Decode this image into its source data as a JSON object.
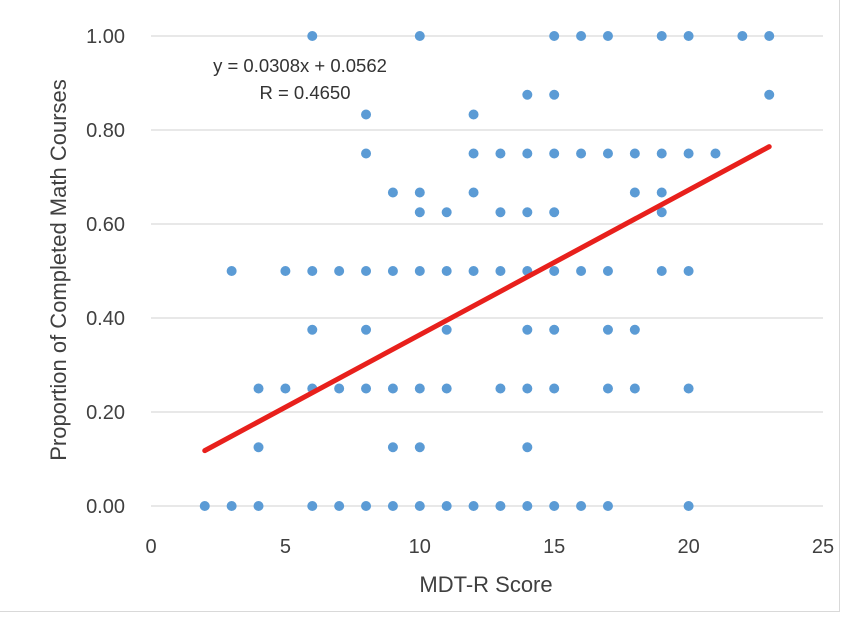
{
  "chart_data": {
    "type": "scatter",
    "title": "",
    "xlabel": "MDT-R Score",
    "ylabel": "Proportion of Completed Math Courses",
    "xlim": [
      0,
      25
    ],
    "ylim": [
      0,
      1
    ],
    "x_ticks": [
      "0",
      "5",
      "10",
      "15",
      "20",
      "25"
    ],
    "y_ticks": [
      "0.00",
      "0.20",
      "0.40",
      "0.60",
      "0.80",
      "1.00"
    ],
    "grid": "horizontal",
    "colors": {
      "points": "#5b9bd5",
      "trendline": "#e8201c",
      "grid": "#d9d9d9",
      "text": "#404040"
    },
    "annotations": {
      "equation": "y = 0.0308x + 0.0562",
      "r_value": "R = 0.4650"
    },
    "trendline": {
      "slope": 0.0308,
      "intercept": 0.0562,
      "x_range": [
        2,
        23
      ]
    },
    "points": [
      {
        "x": 6,
        "y": 1.0
      },
      {
        "x": 10,
        "y": 1.0
      },
      {
        "x": 15,
        "y": 1.0
      },
      {
        "x": 16,
        "y": 1.0
      },
      {
        "x": 17,
        "y": 1.0
      },
      {
        "x": 19,
        "y": 1.0
      },
      {
        "x": 20,
        "y": 1.0
      },
      {
        "x": 22,
        "y": 1.0
      },
      {
        "x": 23,
        "y": 1.0
      },
      {
        "x": 14,
        "y": 0.875
      },
      {
        "x": 15,
        "y": 0.875
      },
      {
        "x": 23,
        "y": 0.875
      },
      {
        "x": 8,
        "y": 0.833
      },
      {
        "x": 12,
        "y": 0.833
      },
      {
        "x": 8,
        "y": 0.75
      },
      {
        "x": 12,
        "y": 0.75
      },
      {
        "x": 13,
        "y": 0.75
      },
      {
        "x": 14,
        "y": 0.75
      },
      {
        "x": 15,
        "y": 0.75
      },
      {
        "x": 16,
        "y": 0.75
      },
      {
        "x": 17,
        "y": 0.75
      },
      {
        "x": 18,
        "y": 0.75
      },
      {
        "x": 19,
        "y": 0.75
      },
      {
        "x": 20,
        "y": 0.75
      },
      {
        "x": 21,
        "y": 0.75
      },
      {
        "x": 9,
        "y": 0.667
      },
      {
        "x": 10,
        "y": 0.667
      },
      {
        "x": 12,
        "y": 0.667
      },
      {
        "x": 18,
        "y": 0.667
      },
      {
        "x": 19,
        "y": 0.667
      },
      {
        "x": 10,
        "y": 0.625
      },
      {
        "x": 11,
        "y": 0.625
      },
      {
        "x": 13,
        "y": 0.625
      },
      {
        "x": 14,
        "y": 0.625
      },
      {
        "x": 15,
        "y": 0.625
      },
      {
        "x": 19,
        "y": 0.625
      },
      {
        "x": 3,
        "y": 0.5
      },
      {
        "x": 5,
        "y": 0.5
      },
      {
        "x": 6,
        "y": 0.5
      },
      {
        "x": 7,
        "y": 0.5
      },
      {
        "x": 8,
        "y": 0.5
      },
      {
        "x": 9,
        "y": 0.5
      },
      {
        "x": 10,
        "y": 0.5
      },
      {
        "x": 11,
        "y": 0.5
      },
      {
        "x": 12,
        "y": 0.5
      },
      {
        "x": 13,
        "y": 0.5
      },
      {
        "x": 14,
        "y": 0.5
      },
      {
        "x": 15,
        "y": 0.5
      },
      {
        "x": 16,
        "y": 0.5
      },
      {
        "x": 17,
        "y": 0.5
      },
      {
        "x": 19,
        "y": 0.5
      },
      {
        "x": 20,
        "y": 0.5
      },
      {
        "x": 6,
        "y": 0.375
      },
      {
        "x": 8,
        "y": 0.375
      },
      {
        "x": 11,
        "y": 0.375
      },
      {
        "x": 14,
        "y": 0.375
      },
      {
        "x": 15,
        "y": 0.375
      },
      {
        "x": 17,
        "y": 0.375
      },
      {
        "x": 18,
        "y": 0.375
      },
      {
        "x": 4,
        "y": 0.25
      },
      {
        "x": 5,
        "y": 0.25
      },
      {
        "x": 6,
        "y": 0.25
      },
      {
        "x": 7,
        "y": 0.25
      },
      {
        "x": 8,
        "y": 0.25
      },
      {
        "x": 9,
        "y": 0.25
      },
      {
        "x": 10,
        "y": 0.25
      },
      {
        "x": 11,
        "y": 0.25
      },
      {
        "x": 13,
        "y": 0.25
      },
      {
        "x": 14,
        "y": 0.25
      },
      {
        "x": 15,
        "y": 0.25
      },
      {
        "x": 17,
        "y": 0.25
      },
      {
        "x": 18,
        "y": 0.25
      },
      {
        "x": 20,
        "y": 0.25
      },
      {
        "x": 4,
        "y": 0.125
      },
      {
        "x": 9,
        "y": 0.125
      },
      {
        "x": 10,
        "y": 0.125
      },
      {
        "x": 14,
        "y": 0.125
      },
      {
        "x": 2,
        "y": 0.0
      },
      {
        "x": 3,
        "y": 0.0
      },
      {
        "x": 4,
        "y": 0.0
      },
      {
        "x": 6,
        "y": 0.0
      },
      {
        "x": 7,
        "y": 0.0
      },
      {
        "x": 8,
        "y": 0.0
      },
      {
        "x": 9,
        "y": 0.0
      },
      {
        "x": 10,
        "y": 0.0
      },
      {
        "x": 11,
        "y": 0.0
      },
      {
        "x": 12,
        "y": 0.0
      },
      {
        "x": 13,
        "y": 0.0
      },
      {
        "x": 14,
        "y": 0.0
      },
      {
        "x": 15,
        "y": 0.0
      },
      {
        "x": 16,
        "y": 0.0
      },
      {
        "x": 17,
        "y": 0.0
      },
      {
        "x": 20,
        "y": 0.0
      }
    ]
  }
}
